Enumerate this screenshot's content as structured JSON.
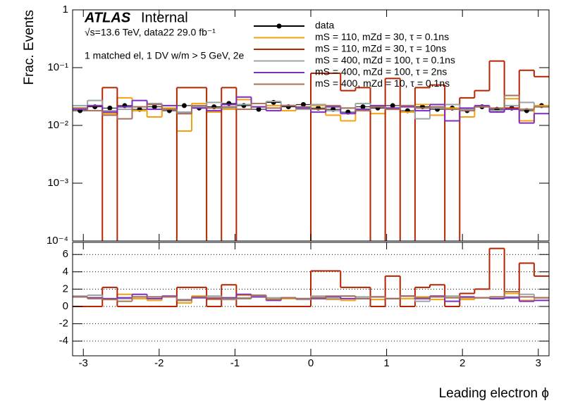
{
  "chart_data": [
    {
      "type": "histogram",
      "experiment": "ATLAS",
      "status": "Internal",
      "energy_lumi": "√s=13.6 TeV, data22 29.0 fb⁻¹",
      "selection": "1 matched el, 1 DV w/m > 5 GeV, 2e",
      "ylabel": "Frac. Events",
      "log_y": true,
      "legend": "top-right",
      "xlim": [
        -3.1416,
        3.1416
      ],
      "xticks": [
        -3,
        -2,
        -1,
        0,
        1,
        2,
        3
      ],
      "ylim": [
        0.0001,
        1
      ],
      "yticks": [
        1,
        {
          "value": 0.1,
          "label": "10⁻¹"
        },
        {
          "value": 0.01,
          "label": "10⁻²"
        },
        {
          "value": 0.001,
          "label": "10⁻³"
        },
        {
          "value": 0.0001,
          "label": "10⁻⁴"
        }
      ],
      "bins": [
        -3.1416,
        -2.9452,
        -2.7489,
        -2.5525,
        -2.3562,
        -2.1598,
        -1.9635,
        -1.7671,
        -1.5708,
        -1.3744,
        -1.1781,
        -0.9817,
        -0.7854,
        -0.589,
        -0.3927,
        -0.1963,
        0,
        0.1963,
        0.3927,
        0.589,
        0.7854,
        0.9817,
        1.1781,
        1.3744,
        1.5708,
        1.7671,
        1.9635,
        2.1598,
        2.3562,
        2.5525,
        2.7489,
        2.9452,
        3.1416
      ],
      "series": [
        {
          "name": "data",
          "color": "#000000",
          "style": "points",
          "values": [
            0.018,
            0.021,
            0.02,
            0.022,
            0.019,
            0.021,
            0.018,
            0.022,
            0.02,
            0.021,
            0.024,
            0.022,
            0.019,
            0.025,
            0.021,
            0.023,
            0.02,
            0.019,
            0.017,
            0.021,
            0.02,
            0.022,
            0.018,
            0.021,
            0.019,
            0.02,
            0.018,
            0.021,
            0.019,
            0.02,
            0.018,
            0.022
          ]
        },
        {
          "name": "mS = 110, mZd = 30, τ = 0.1ns",
          "color": "#f2a20d",
          "values": [
            0.02,
            0.022,
            0.016,
            0.03,
            0.018,
            0.014,
            0.02,
            0.008,
            0.024,
            0.017,
            0.019,
            0.028,
            0.021,
            0.022,
            0.018,
            0.02,
            0.022,
            0.015,
            0.012,
            0.019,
            0.016,
            0.02,
            0.017,
            0.023,
            0.015,
            0.02,
            0.014,
            0.021,
            0.018,
            0.029,
            0.012,
            0.022
          ]
        },
        {
          "name": "mS = 110, mZd = 30, τ = 10ns",
          "color": "#b52400",
          "values": [
            0,
            0,
            0.045,
            0,
            0,
            0,
            0,
            0.045,
            0.045,
            0,
            0.045,
            0,
            0,
            0,
            0,
            0,
            0.08,
            0.08,
            0.04,
            0.045,
            0,
            0.065,
            0,
            0.045,
            0.05,
            0,
            0.03,
            0.04,
            0.13,
            0.02,
            0.09,
            0.07
          ]
        },
        {
          "name": "mS = 400, mZd = 100, τ = 0.1ns",
          "color": "#9aa5a8",
          "values": [
            0.022,
            0.027,
            0.018,
            0.019,
            0.021,
            0.024,
            0.019,
            0.017,
            0.021,
            0.025,
            0.02,
            0.023,
            0.021,
            0.026,
            0.022,
            0.019,
            0.023,
            0.018,
            0.02,
            0.024,
            0.021,
            0.019,
            0.022,
            0.013,
            0.02,
            0.023,
            0.019,
            0.021,
            0.018,
            0.022,
            0.025,
            0.021
          ]
        },
        {
          "name": "mS = 400, mZd = 100, τ = 2ns",
          "color": "#7b2fbf",
          "values": [
            0.019,
            0.022,
            0.017,
            0.021,
            0.027,
            0.019,
            0.022,
            0.016,
            0.02,
            0.018,
            0.023,
            0.031,
            0.021,
            0.018,
            0.022,
            0.02,
            0.017,
            0.021,
            0.016,
            0.019,
            0.022,
            0.02,
            0.021,
            0.018,
            0.023,
            0.012,
            0.02,
            0.022,
            0.017,
            0.019,
            0.011,
            0.016
          ]
        },
        {
          "name": "mS = 400, mZd = 10, τ = 0.1ns",
          "color": "#a8705a",
          "values": [
            0.02,
            0.018,
            0.015,
            0.013,
            0.021,
            0.023,
            0.019,
            0.016,
            0.022,
            0.02,
            0.021,
            0.019,
            0.024,
            0.02,
            0.022,
            0.021,
            0.019,
            0.022,
            0.02,
            0.018,
            0.021,
            0.019,
            0.022,
            0.02,
            0.021,
            0.019,
            0.018,
            0.021,
            0.02,
            0.033,
            0.019,
            0.021
          ]
        }
      ]
    },
    {
      "type": "histogram",
      "xlabel": "Leading electron ϕ",
      "grid": true,
      "xlim": [
        -3.1416,
        3.1416
      ],
      "xticks": [
        -3,
        -2,
        -1,
        0,
        1,
        2,
        3
      ],
      "ylim": [
        -5.7,
        7.4
      ],
      "yticks": [
        -4,
        -2,
        0,
        2,
        4,
        6
      ],
      "bins": [
        -3.1416,
        -2.9452,
        -2.7489,
        -2.5525,
        -2.3562,
        -2.1598,
        -1.9635,
        -1.7671,
        -1.5708,
        -1.3744,
        -1.1781,
        -0.9817,
        -0.7854,
        -0.589,
        -0.3927,
        -0.1963,
        0,
        0.1963,
        0.3927,
        0.589,
        0.7854,
        0.9817,
        1.1781,
        1.3744,
        1.5708,
        1.7671,
        1.9635,
        2.1598,
        2.3562,
        2.5525,
        2.7489,
        2.9452,
        3.1416
      ],
      "series": [
        {
          "color": "#f2a20d",
          "values": [
            1.1,
            1.0,
            0.8,
            1.4,
            0.9,
            0.7,
            1.1,
            0.4,
            1.2,
            0.8,
            0.8,
            1.3,
            1.1,
            0.9,
            0.9,
            0.9,
            1.1,
            0.8,
            0.7,
            0.9,
            0.8,
            0.9,
            0.9,
            1.1,
            0.8,
            1.0,
            0.8,
            1.0,
            0.9,
            1.5,
            0.7,
            1.0
          ]
        },
        {
          "color": "#b52400",
          "values": [
            0,
            0,
            2.2,
            0,
            0,
            0,
            0,
            2.2,
            2.2,
            0,
            2.5,
            0,
            0,
            0,
            0,
            0,
            4.1,
            4.1,
            2.2,
            2.2,
            0,
            3.5,
            0,
            2.2,
            2.5,
            0,
            1.5,
            2.0,
            6.7,
            1.0,
            5.0,
            3.5
          ]
        },
        {
          "color": "#9aa5a8",
          "values": [
            1.2,
            1.3,
            0.9,
            0.9,
            1.1,
            1.1,
            1.1,
            0.8,
            1.0,
            1.2,
            0.8,
            1.0,
            1.1,
            1.0,
            1.0,
            0.8,
            1.2,
            0.9,
            1.2,
            1.1,
            1.1,
            0.9,
            1.2,
            0.6,
            1.1,
            1.2,
            1.1,
            1.0,
            0.9,
            1.1,
            1.4,
            1.0
          ]
        },
        {
          "color": "#7b2fbf",
          "values": [
            1.1,
            1.0,
            0.9,
            1.0,
            1.4,
            0.9,
            1.2,
            0.7,
            1.0,
            0.9,
            1.0,
            1.4,
            1.1,
            0.7,
            1.0,
            0.9,
            0.9,
            1.1,
            0.9,
            0.9,
            1.1,
            0.9,
            1.2,
            0.9,
            1.2,
            0.6,
            1.1,
            1.0,
            0.9,
            1.0,
            0.6,
            0.7
          ]
        },
        {
          "color": "#a8705a",
          "values": [
            1.1,
            0.9,
            0.8,
            0.6,
            1.1,
            1.1,
            1.1,
            0.7,
            1.1,
            1.0,
            0.9,
            0.9,
            1.3,
            0.8,
            1.0,
            0.9,
            1.0,
            1.2,
            1.2,
            0.9,
            1.1,
            0.9,
            1.2,
            1.0,
            1.1,
            1.0,
            1.0,
            1.0,
            1.1,
            1.7,
            1.1,
            1.0
          ]
        }
      ]
    }
  ]
}
